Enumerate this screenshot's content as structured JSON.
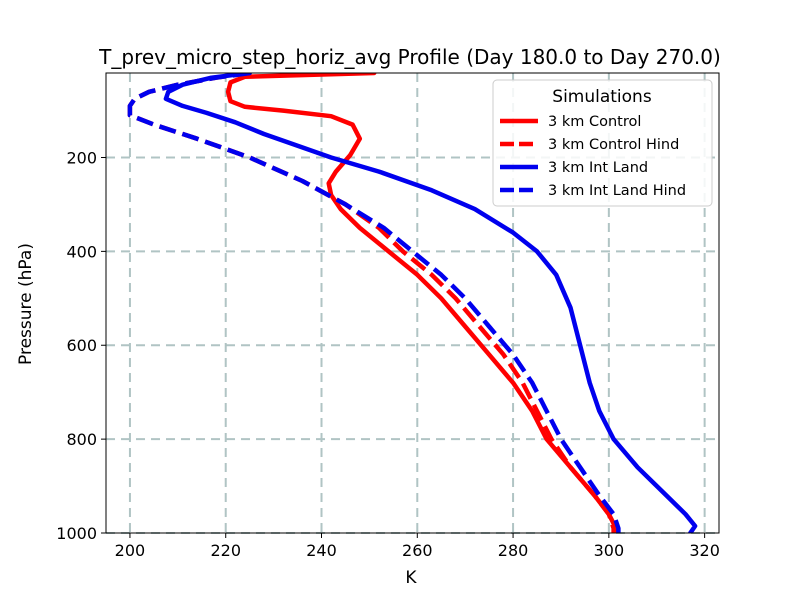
{
  "chart_data": {
    "type": "line",
    "title": "T_prev_micro_step_horiz_avg Profile (Day 180.0 to Day 270.0)",
    "xlabel": "K",
    "ylabel": "Pressure (hPa)",
    "xlim": [
      195,
      323
    ],
    "ylim": [
      1000,
      20
    ],
    "y_inverted": true,
    "grid": true,
    "xticks": [
      200,
      220,
      240,
      260,
      280,
      300,
      320
    ],
    "yticks": [
      200,
      400,
      600,
      800,
      1000
    ],
    "legend": {
      "title": "Simulations",
      "position": "top-right"
    },
    "series": [
      {
        "name": "3 km Control",
        "color": "#ff0000",
        "style": "solid",
        "points": [
          [
            251,
            20
          ],
          [
            224,
            28
          ],
          [
            221,
            40
          ],
          [
            220.5,
            60
          ],
          [
            221,
            80
          ],
          [
            224,
            92
          ],
          [
            232,
            100
          ],
          [
            242,
            112
          ],
          [
            246.5,
            130
          ],
          [
            248,
            160
          ],
          [
            246,
            195
          ],
          [
            243,
            230
          ],
          [
            241.5,
            255
          ],
          [
            242,
            280
          ],
          [
            244,
            310
          ],
          [
            248,
            350
          ],
          [
            254,
            400
          ],
          [
            260,
            450
          ],
          [
            265,
            500
          ],
          [
            270,
            560
          ],
          [
            275,
            620
          ],
          [
            280,
            680
          ],
          [
            284,
            740
          ],
          [
            287,
            800
          ],
          [
            292,
            860
          ],
          [
            297,
            920
          ],
          [
            300,
            960
          ],
          [
            301.5,
            990
          ],
          [
            302,
            1000
          ]
        ]
      },
      {
        "name": "3 km Control Hind",
        "color": "#ff0000",
        "style": "dashed",
        "points": [
          [
            225,
            20
          ],
          [
            218,
            30
          ],
          [
            210,
            45
          ],
          [
            204,
            60
          ],
          [
            201,
            75
          ],
          [
            200,
            90
          ],
          [
            200,
            110
          ],
          [
            205,
            130
          ],
          [
            214,
            160
          ],
          [
            225,
            200
          ],
          [
            236,
            250
          ],
          [
            245,
            300
          ],
          [
            252,
            350
          ],
          [
            257,
            400
          ],
          [
            263,
            450
          ],
          [
            268,
            500
          ],
          [
            273,
            560
          ],
          [
            278,
            620
          ],
          [
            282,
            680
          ],
          [
            285,
            740
          ],
          [
            288,
            800
          ],
          [
            292,
            860
          ],
          [
            297,
            920
          ],
          [
            300,
            960
          ],
          [
            301,
            990
          ],
          [
            301,
            1000
          ]
        ]
      },
      {
        "name": "3 km Int Land",
        "color": "#0000ee",
        "style": "solid",
        "points": [
          [
            225,
            20
          ],
          [
            217,
            30
          ],
          [
            211,
            45
          ],
          [
            208,
            60
          ],
          [
            207.5,
            75
          ],
          [
            211,
            90
          ],
          [
            216,
            105
          ],
          [
            222,
            125
          ],
          [
            228,
            150
          ],
          [
            235,
            175
          ],
          [
            242,
            200
          ],
          [
            252,
            230
          ],
          [
            263,
            270
          ],
          [
            272,
            310
          ],
          [
            280,
            360
          ],
          [
            285,
            400
          ],
          [
            289,
            450
          ],
          [
            292,
            520
          ],
          [
            294,
            600
          ],
          [
            296,
            680
          ],
          [
            298,
            740
          ],
          [
            301,
            800
          ],
          [
            306,
            860
          ],
          [
            312,
            920
          ],
          [
            316,
            960
          ],
          [
            318,
            985
          ],
          [
            317,
            1000
          ]
        ]
      },
      {
        "name": "3 km Int Land Hind",
        "color": "#0000ee",
        "style": "dashed",
        "points": [
          [
            225,
            20
          ],
          [
            218,
            30
          ],
          [
            210,
            45
          ],
          [
            204,
            60
          ],
          [
            201,
            75
          ],
          [
            200,
            90
          ],
          [
            200,
            110
          ],
          [
            205,
            130
          ],
          [
            214,
            160
          ],
          [
            225,
            200
          ],
          [
            236,
            250
          ],
          [
            245,
            300
          ],
          [
            253,
            350
          ],
          [
            259,
            400
          ],
          [
            265,
            450
          ],
          [
            270,
            500
          ],
          [
            275,
            560
          ],
          [
            280,
            620
          ],
          [
            284,
            680
          ],
          [
            287,
            740
          ],
          [
            290,
            800
          ],
          [
            294,
            860
          ],
          [
            298,
            920
          ],
          [
            301,
            960
          ],
          [
            302,
            990
          ],
          [
            302,
            1000
          ]
        ]
      }
    ]
  }
}
